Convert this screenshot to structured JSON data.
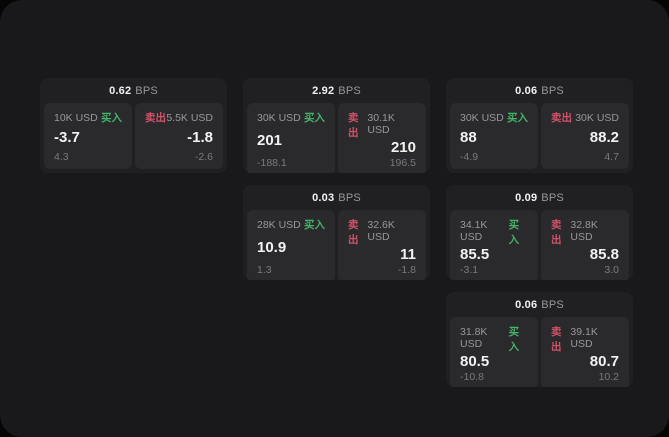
{
  "colors": {
    "window_bg": "#19191b",
    "card_bg": "#202022",
    "panel_bg": "#2a2a2c",
    "value_white": "#f2f2f3",
    "label_gray": "#98989c",
    "sub_gray": "#7a7a7e",
    "buy_green": "#45b269",
    "sell_red": "#cf5268"
  },
  "cards": [
    {
      "bps_value": "0.62",
      "bps_unit": "BPS",
      "grid": {
        "col": 1,
        "row": 1
      },
      "buy": {
        "size": "10K USD",
        "side_label": "买入",
        "value": "-3.7",
        "sub": "4.3"
      },
      "sell": {
        "side_label": "卖出",
        "size": "5.5K USD",
        "value": "-1.8",
        "sub": "-2.6"
      }
    },
    {
      "bps_value": "2.92",
      "bps_unit": "BPS",
      "grid": {
        "col": 2,
        "row": 1
      },
      "buy": {
        "size": "30K USD",
        "side_label": "买入",
        "value": "201",
        "sub": "-188.1"
      },
      "sell": {
        "side_label": "卖出",
        "size": "30.1K USD",
        "value": "210",
        "sub": "196.5"
      }
    },
    {
      "bps_value": "0.06",
      "bps_unit": "BPS",
      "grid": {
        "col": 3,
        "row": 1
      },
      "buy": {
        "size": "30K USD",
        "side_label": "买入",
        "value": "88",
        "sub": "-4.9"
      },
      "sell": {
        "side_label": "卖出",
        "size": "30K USD",
        "value": "88.2",
        "sub": "4.7"
      }
    },
    {
      "bps_value": "0.03",
      "bps_unit": "BPS",
      "grid": {
        "col": 2,
        "row": 2
      },
      "buy": {
        "size": "28K USD",
        "side_label": "买入",
        "value": "10.9",
        "sub": "1.3"
      },
      "sell": {
        "side_label": "卖出",
        "size": "32.6K USD",
        "value": "11",
        "sub": "-1.8"
      }
    },
    {
      "bps_value": "0.09",
      "bps_unit": "BPS",
      "grid": {
        "col": 3,
        "row": 2
      },
      "buy": {
        "size": "34.1K USD",
        "side_label": "买入",
        "value": "85.5",
        "sub": "-3.1"
      },
      "sell": {
        "side_label": "卖出",
        "size": "32.8K USD",
        "value": "85.8",
        "sub": "3.0"
      }
    },
    {
      "bps_value": "0.06",
      "bps_unit": "BPS",
      "grid": {
        "col": 3,
        "row": 3
      },
      "buy": {
        "size": "31.8K USD",
        "side_label": "买入",
        "value": "80.5",
        "sub": "-10.8"
      },
      "sell": {
        "side_label": "卖出",
        "size": "39.1K USD",
        "value": "80.7",
        "sub": "10.2"
      }
    }
  ]
}
